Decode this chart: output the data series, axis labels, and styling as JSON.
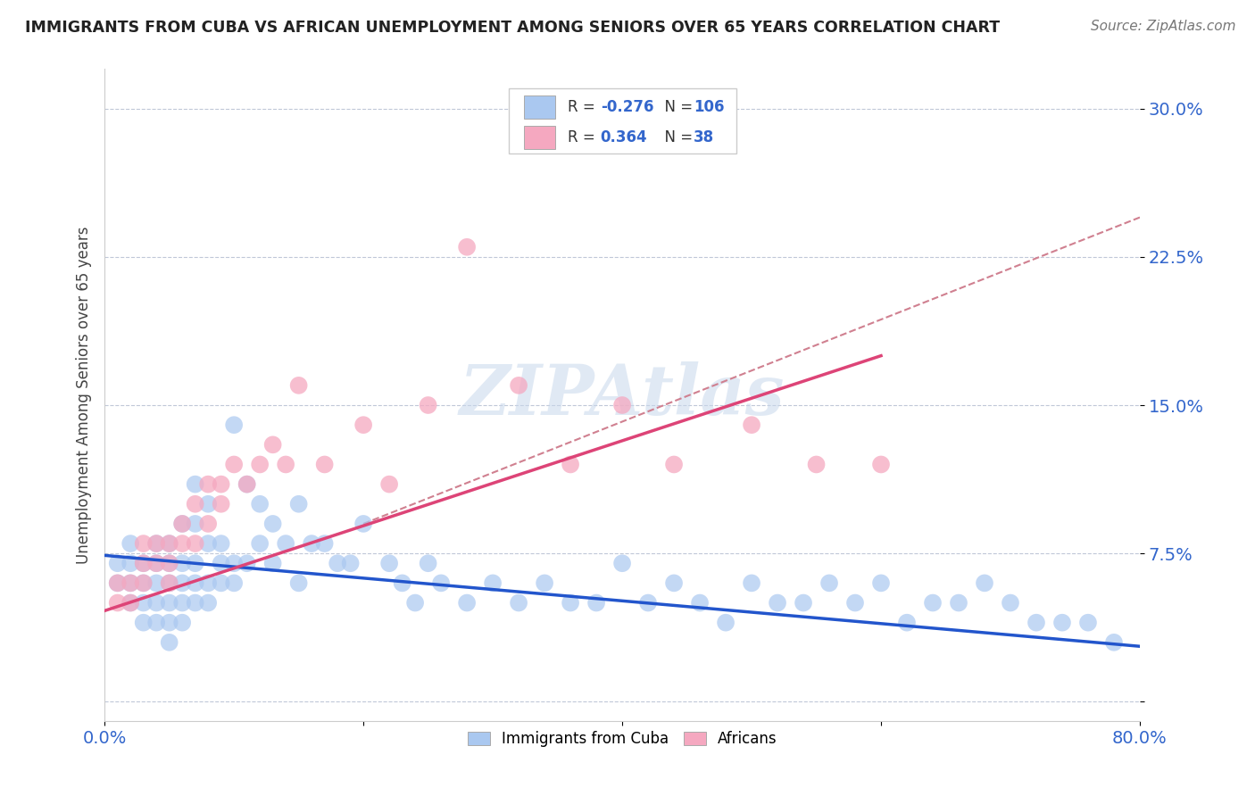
{
  "title": "IMMIGRANTS FROM CUBA VS AFRICAN UNEMPLOYMENT AMONG SENIORS OVER 65 YEARS CORRELATION CHART",
  "source": "Source: ZipAtlas.com",
  "ylabel": "Unemployment Among Seniors over 65 years",
  "xlim": [
    0.0,
    0.8
  ],
  "ylim": [
    -0.01,
    0.32
  ],
  "yticks": [
    0.0,
    0.075,
    0.15,
    0.225,
    0.3
  ],
  "ytick_labels": [
    "",
    "7.5%",
    "15.0%",
    "22.5%",
    "30.0%"
  ],
  "xticks": [
    0.0,
    0.2,
    0.4,
    0.6,
    0.8
  ],
  "xtick_labels": [
    "0.0%",
    "",
    "",
    "",
    "80.0%"
  ],
  "watermark": "ZIPAtlas",
  "blue_color": "#aac8f0",
  "pink_color": "#f5a8c0",
  "blue_line_color": "#2255cc",
  "pink_line_color": "#dd4477",
  "gray_dash_color": "#d08090",
  "blue_scatter_x": [
    0.01,
    0.01,
    0.02,
    0.02,
    0.02,
    0.02,
    0.03,
    0.03,
    0.03,
    0.03,
    0.04,
    0.04,
    0.04,
    0.04,
    0.04,
    0.05,
    0.05,
    0.05,
    0.05,
    0.05,
    0.05,
    0.06,
    0.06,
    0.06,
    0.06,
    0.06,
    0.07,
    0.07,
    0.07,
    0.07,
    0.07,
    0.08,
    0.08,
    0.08,
    0.08,
    0.09,
    0.09,
    0.09,
    0.1,
    0.1,
    0.1,
    0.11,
    0.11,
    0.12,
    0.12,
    0.13,
    0.13,
    0.14,
    0.15,
    0.15,
    0.16,
    0.17,
    0.18,
    0.19,
    0.2,
    0.22,
    0.23,
    0.24,
    0.25,
    0.26,
    0.28,
    0.3,
    0.32,
    0.34,
    0.36,
    0.38,
    0.4,
    0.42,
    0.44,
    0.46,
    0.48,
    0.5,
    0.52,
    0.54,
    0.56,
    0.58,
    0.6,
    0.62,
    0.64,
    0.66,
    0.68,
    0.7,
    0.72,
    0.74,
    0.76,
    0.78
  ],
  "blue_scatter_y": [
    0.06,
    0.07,
    0.05,
    0.06,
    0.07,
    0.08,
    0.04,
    0.05,
    0.06,
    0.07,
    0.04,
    0.05,
    0.06,
    0.07,
    0.08,
    0.03,
    0.04,
    0.05,
    0.06,
    0.07,
    0.08,
    0.04,
    0.05,
    0.06,
    0.07,
    0.09,
    0.05,
    0.06,
    0.07,
    0.09,
    0.11,
    0.05,
    0.06,
    0.08,
    0.1,
    0.06,
    0.07,
    0.08,
    0.06,
    0.07,
    0.14,
    0.07,
    0.11,
    0.08,
    0.1,
    0.07,
    0.09,
    0.08,
    0.06,
    0.1,
    0.08,
    0.08,
    0.07,
    0.07,
    0.09,
    0.07,
    0.06,
    0.05,
    0.07,
    0.06,
    0.05,
    0.06,
    0.05,
    0.06,
    0.05,
    0.05,
    0.07,
    0.05,
    0.06,
    0.05,
    0.04,
    0.06,
    0.05,
    0.05,
    0.06,
    0.05,
    0.06,
    0.04,
    0.05,
    0.05,
    0.06,
    0.05,
    0.04,
    0.04,
    0.04,
    0.03
  ],
  "pink_scatter_x": [
    0.01,
    0.01,
    0.02,
    0.02,
    0.03,
    0.03,
    0.03,
    0.04,
    0.04,
    0.05,
    0.05,
    0.05,
    0.06,
    0.06,
    0.07,
    0.07,
    0.08,
    0.08,
    0.09,
    0.09,
    0.1,
    0.11,
    0.12,
    0.13,
    0.14,
    0.15,
    0.17,
    0.2,
    0.22,
    0.25,
    0.28,
    0.32,
    0.36,
    0.4,
    0.44,
    0.5,
    0.55,
    0.6
  ],
  "pink_scatter_y": [
    0.05,
    0.06,
    0.05,
    0.06,
    0.06,
    0.07,
    0.08,
    0.07,
    0.08,
    0.06,
    0.07,
    0.08,
    0.08,
    0.09,
    0.08,
    0.1,
    0.09,
    0.11,
    0.1,
    0.11,
    0.12,
    0.11,
    0.12,
    0.13,
    0.12,
    0.16,
    0.12,
    0.14,
    0.11,
    0.15,
    0.23,
    0.16,
    0.12,
    0.15,
    0.12,
    0.14,
    0.12,
    0.12
  ],
  "blue_line_x0": 0.0,
  "blue_line_x1": 0.8,
  "blue_line_y0": 0.074,
  "blue_line_y1": 0.028,
  "pink_line_x0": 0.0,
  "pink_line_x1": 0.6,
  "pink_line_y0": 0.046,
  "pink_line_y1": 0.175,
  "gray_line_x0": 0.2,
  "gray_line_x1": 0.8,
  "gray_line_y0": 0.09,
  "gray_line_y1": 0.245
}
